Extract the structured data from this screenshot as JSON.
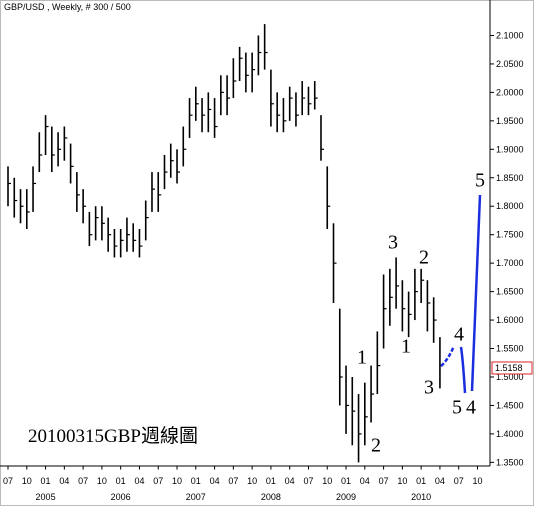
{
  "chart_data": {
    "type": "ohlc",
    "title": "GBP/USD , Weekly, # 300 / 500",
    "caption": "20100315GBP週線圖",
    "color": "#000000",
    "x": [
      0,
      1,
      2,
      3,
      4,
      5,
      6,
      7,
      8,
      9,
      10,
      11,
      12,
      13,
      14,
      15,
      16,
      17,
      18,
      19,
      20,
      21,
      22,
      23,
      24,
      25,
      26,
      27,
      28,
      29,
      30,
      31,
      32,
      33,
      34,
      35,
      36,
      37,
      38,
      39,
      40,
      41,
      42,
      43,
      44,
      45,
      46,
      47,
      48,
      49,
      50,
      51,
      52,
      53,
      54,
      55,
      56,
      57,
      58,
      59,
      60,
      61,
      62,
      63,
      64,
      65,
      66,
      67,
      68,
      69
    ],
    "high": [
      1.87,
      1.85,
      1.83,
      1.83,
      1.87,
      1.93,
      1.96,
      1.94,
      1.93,
      1.94,
      1.91,
      1.86,
      1.83,
      1.79,
      1.8,
      1.8,
      1.78,
      1.76,
      1.76,
      1.78,
      1.77,
      1.76,
      1.81,
      1.86,
      1.86,
      1.89,
      1.91,
      1.9,
      1.94,
      1.99,
      2.01,
      1.99,
      2.0,
      1.99,
      2.03,
      2.03,
      2.06,
      2.08,
      2.07,
      2.07,
      2.1,
      2.12,
      2.04,
      2.0,
      1.99,
      2.01,
      2.0,
      2.02,
      2.01,
      2.02,
      1.96,
      1.87,
      1.77,
      1.62,
      1.52,
      1.5,
      1.47,
      1.49,
      1.52,
      1.58,
      1.68,
      1.69,
      1.71,
      1.67,
      1.65,
      1.69,
      1.69,
      1.67,
      1.64,
      1.57
    ],
    "low": [
      1.8,
      1.78,
      1.77,
      1.76,
      1.79,
      1.86,
      1.89,
      1.86,
      1.87,
      1.88,
      1.84,
      1.79,
      1.77,
      1.73,
      1.74,
      1.74,
      1.72,
      1.71,
      1.71,
      1.72,
      1.72,
      1.71,
      1.74,
      1.79,
      1.79,
      1.83,
      1.85,
      1.84,
      1.87,
      1.92,
      1.95,
      1.93,
      1.93,
      1.92,
      1.96,
      1.96,
      1.99,
      2.02,
      2.0,
      2.0,
      2.03,
      2.04,
      1.94,
      1.93,
      1.93,
      1.95,
      1.94,
      1.96,
      1.96,
      1.97,
      1.88,
      1.76,
      1.63,
      1.45,
      1.4,
      1.38,
      1.35,
      1.38,
      1.42,
      1.47,
      1.55,
      1.59,
      1.62,
      1.58,
      1.57,
      1.6,
      1.63,
      1.58,
      1.56,
      1.48
    ],
    "close": [
      1.84,
      1.81,
      1.8,
      1.79,
      1.84,
      1.89,
      1.94,
      1.89,
      1.9,
      1.92,
      1.87,
      1.82,
      1.8,
      1.75,
      1.78,
      1.77,
      1.75,
      1.73,
      1.74,
      1.75,
      1.74,
      1.73,
      1.78,
      1.83,
      1.82,
      1.86,
      1.88,
      1.86,
      1.9,
      1.96,
      1.98,
      1.96,
      1.97,
      1.94,
      2.0,
      1.99,
      2.02,
      2.06,
      2.03,
      2.04,
      2.07,
      2.07,
      1.98,
      1.96,
      1.95,
      1.99,
      1.96,
      1.99,
      1.98,
      1.99,
      1.9,
      1.8,
      1.7,
      1.5,
      1.45,
      1.44,
      1.4,
      1.43,
      1.47,
      1.52,
      1.62,
      1.64,
      1.66,
      1.62,
      1.61,
      1.65,
      1.67,
      1.63,
      1.6,
      1.52
    ],
    "xlim": [
      -0.8,
      77
    ],
    "ylim": [
      1.3443,
      2.1567
    ],
    "xticks": [
      {
        "value": 0,
        "label": "07"
      },
      {
        "value": 3,
        "label": "10"
      },
      {
        "value": 6,
        "label": "01"
      },
      {
        "value": 9,
        "label": "04"
      },
      {
        "value": 12,
        "label": "07"
      },
      {
        "value": 15,
        "label": "10"
      },
      {
        "value": 18,
        "label": "01"
      },
      {
        "value": 21,
        "label": "04"
      },
      {
        "value": 24,
        "label": "07"
      },
      {
        "value": 27,
        "label": "10"
      },
      {
        "value": 30,
        "label": "01"
      },
      {
        "value": 33,
        "label": "04"
      },
      {
        "value": 36,
        "label": "07"
      },
      {
        "value": 39,
        "label": "10"
      },
      {
        "value": 42,
        "label": "01"
      },
      {
        "value": 45,
        "label": "04"
      },
      {
        "value": 48,
        "label": "07"
      },
      {
        "value": 51,
        "label": "10"
      },
      {
        "value": 54,
        "label": "01"
      },
      {
        "value": 57,
        "label": "04"
      },
      {
        "value": 60,
        "label": "07"
      },
      {
        "value": 63,
        "label": "10"
      },
      {
        "value": 66,
        "label": "01"
      },
      {
        "value": 69,
        "label": "04"
      },
      {
        "value": 72,
        "label": "07"
      },
      {
        "value": 75,
        "label": "10"
      }
    ],
    "year_ticks": [
      {
        "value": 6,
        "label": "2005"
      },
      {
        "value": 18,
        "label": "2006"
      },
      {
        "value": 30,
        "label": "2007"
      },
      {
        "value": 42,
        "label": "2008"
      },
      {
        "value": 54,
        "label": "2009"
      },
      {
        "value": 66,
        "label": "2010"
      }
    ],
    "yticks": [
      {
        "value": 2.1,
        "label": "2.1000"
      },
      {
        "value": 2.05,
        "label": "2.0500"
      },
      {
        "value": 2.0,
        "label": "2.0000"
      },
      {
        "value": 1.95,
        "label": "1.9500"
      },
      {
        "value": 1.9,
        "label": "1.9000"
      },
      {
        "value": 1.85,
        "label": "1.8500"
      },
      {
        "value": 1.8,
        "label": "1.8000"
      },
      {
        "value": 1.75,
        "label": "1.7500"
      },
      {
        "value": 1.7,
        "label": "1.7000"
      },
      {
        "value": 1.65,
        "label": "1.6500"
      },
      {
        "value": 1.6,
        "label": "1.6000"
      },
      {
        "value": 1.55,
        "label": "1.5500"
      },
      {
        "value": 1.5,
        "label": "1.5000"
      },
      {
        "value": 1.45,
        "label": "1.4500"
      },
      {
        "value": 1.4,
        "label": "1.4000"
      },
      {
        "value": 1.35,
        "label": "1.3500"
      }
    ],
    "last_price": {
      "value": 1.5158,
      "label": "1.5158"
    },
    "wave_labels": [
      {
        "text": "1",
        "color": "#2222cc"
      },
      {
        "text": "2",
        "color": "#2222cc"
      },
      {
        "text": "3",
        "color": "#2222cc"
      },
      {
        "text": "4",
        "color": "#2222cc"
      },
      {
        "text": "5",
        "color": "#2222cc"
      },
      {
        "text": "1",
        "color": "#dd1111"
      },
      {
        "text": "2",
        "color": "#dd1111"
      },
      {
        "text": "3",
        "color": "#dd1111"
      },
      {
        "text": "4",
        "color": "#dd1111"
      },
      {
        "text": "5",
        "color": "#dd1111"
      }
    ]
  }
}
